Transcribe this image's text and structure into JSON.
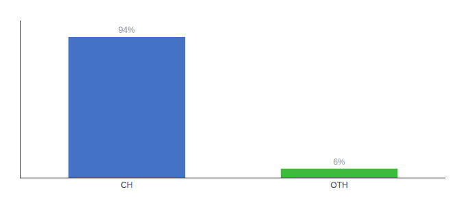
{
  "chart_data": {
    "type": "bar",
    "categories": [
      "CH",
      "OTH"
    ],
    "values": [
      94,
      6
    ],
    "value_labels": [
      "94%",
      "6%"
    ],
    "data_labels": true,
    "colors": [
      "#4472c4",
      "#3dbb3d"
    ],
    "ylim": [
      0,
      105
    ],
    "tick_labels": "x",
    "grid": false
  }
}
